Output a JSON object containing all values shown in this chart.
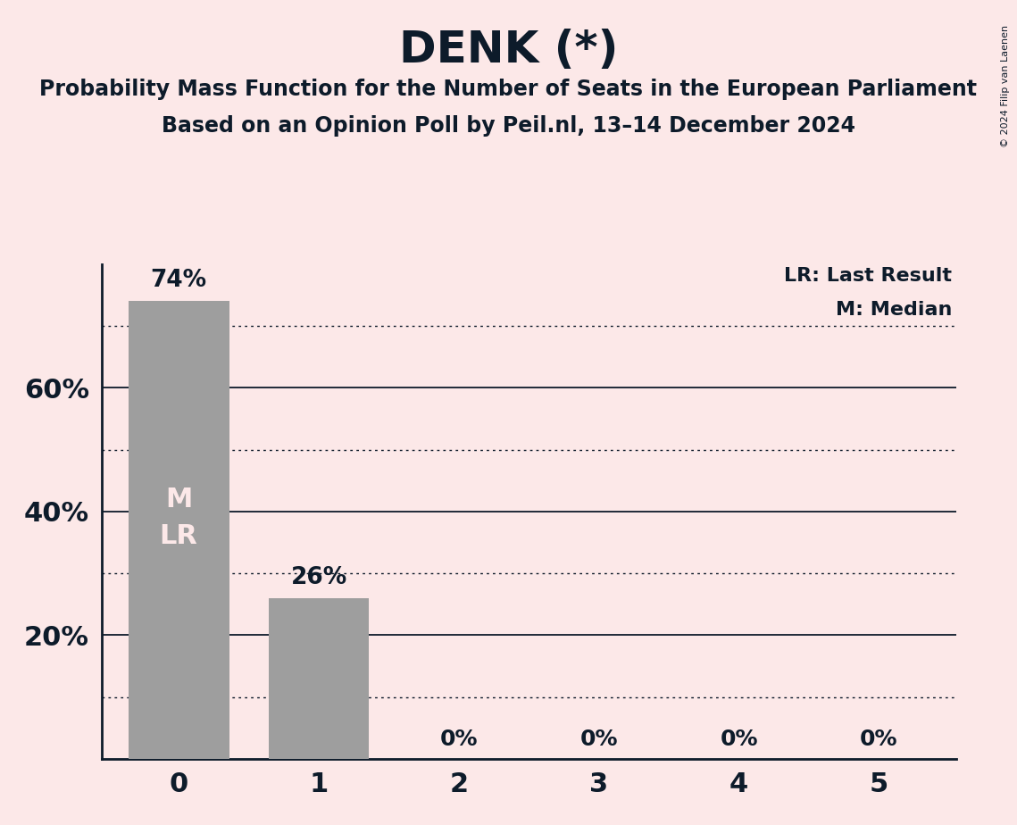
{
  "title": "DENK (*)",
  "subtitle1": "Probability Mass Function for the Number of Seats in the European Parliament",
  "subtitle2": "Based on an Opinion Poll by Peil.nl, 13–14 December 2024",
  "copyright": "© 2024 Filip van Laenen",
  "categories": [
    0,
    1,
    2,
    3,
    4,
    5
  ],
  "values": [
    74,
    26,
    0,
    0,
    0,
    0
  ],
  "bar_color": "#9e9e9e",
  "background_color": "#fce8e8",
  "text_color": "#0d1b2a",
  "bar_label_color_inside": "#fce8e8",
  "ylim": [
    0,
    80
  ],
  "median": 0,
  "last_result": 0,
  "legend_lr": "LR: Last Result",
  "legend_m": "M: Median",
  "solid_lines": [
    20,
    40,
    60
  ],
  "dotted_lines": [
    10,
    30,
    50,
    70
  ],
  "ytick_positions": [
    20,
    40,
    60
  ],
  "ytick_labels": [
    "20%",
    "40%",
    "60%"
  ]
}
